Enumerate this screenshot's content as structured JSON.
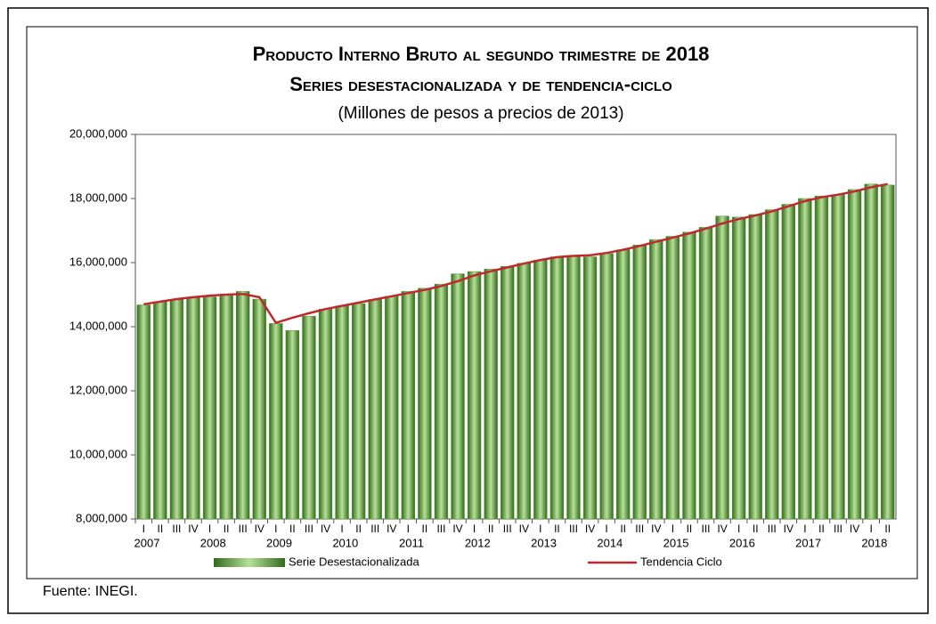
{
  "chart_data": {
    "type": "bar_line",
    "title": "Producto Interno Bruto al segundo trimestre de 2018",
    "subtitle": "Series desestacionalizada y de tendencia-ciclo",
    "unit_note": "(Millones de pesos a precios de 2013)",
    "source": "Fuente: INEGI.",
    "categories": [
      "I",
      "II",
      "III",
      "IV",
      "I",
      "II",
      "III",
      "IV",
      "I",
      "II",
      "III",
      "IV",
      "I",
      "II",
      "III",
      "IV",
      "I",
      "II",
      "III",
      "IV",
      "I",
      "II",
      "III",
      "IV",
      "I",
      "II",
      "III",
      "IV",
      "I",
      "II",
      "III",
      "IV",
      "I",
      "II",
      "III",
      "IV",
      "I",
      "II",
      "III",
      "IV",
      "I",
      "II",
      "III",
      "IV",
      "I",
      "II"
    ],
    "years": [
      "2007",
      "2008",
      "2009",
      "2010",
      "2011",
      "2012",
      "2013",
      "2014",
      "2015",
      "2016",
      "2017",
      "2018"
    ],
    "series": [
      {
        "name": "Serie Desestacionalizada",
        "kind": "bar",
        "color": "#4f9a2e",
        "values": [
          14680000,
          14780000,
          14850000,
          14900000,
          14930000,
          14980000,
          15100000,
          14860000,
          14100000,
          13880000,
          14330000,
          14550000,
          14650000,
          14720000,
          14850000,
          14950000,
          15100000,
          15200000,
          15330000,
          15650000,
          15720000,
          15800000,
          15880000,
          15980000,
          16080000,
          16180000,
          16220000,
          16180000,
          16280000,
          16400000,
          16550000,
          16720000,
          16820000,
          16950000,
          17100000,
          17450000,
          17420000,
          17500000,
          17650000,
          17820000,
          18000000,
          18080000,
          18120000,
          18280000,
          18450000,
          18420000
        ]
      },
      {
        "name": "Tendencia Ciclo",
        "kind": "line",
        "color": "#c0282d",
        "values": [
          14700000,
          14780000,
          14860000,
          14920000,
          14970000,
          15000000,
          15020000,
          14920000,
          14120000,
          14280000,
          14420000,
          14550000,
          14650000,
          14750000,
          14850000,
          14950000,
          15050000,
          15150000,
          15270000,
          15420000,
          15600000,
          15730000,
          15850000,
          15970000,
          16080000,
          16170000,
          16210000,
          16230000,
          16300000,
          16400000,
          16520000,
          16650000,
          16780000,
          16910000,
          17060000,
          17220000,
          17360000,
          17470000,
          17600000,
          17760000,
          17920000,
          18040000,
          18120000,
          18220000,
          18350000,
          18450000
        ]
      }
    ],
    "ylim": [
      8000000,
      20000000
    ],
    "yticks": [
      {
        "value": 8000000,
        "label": "8,000,000"
      },
      {
        "value": 10000000,
        "label": "10,000,000"
      },
      {
        "value": 12000000,
        "label": "12,000,000"
      },
      {
        "value": 14000000,
        "label": "14,000,000"
      },
      {
        "value": 16000000,
        "label": "16,000,000"
      },
      {
        "value": 18000000,
        "label": "18,000,000"
      },
      {
        "value": 20000000,
        "label": "20,000,000"
      }
    ],
    "grid": false,
    "legend": "bottom"
  }
}
